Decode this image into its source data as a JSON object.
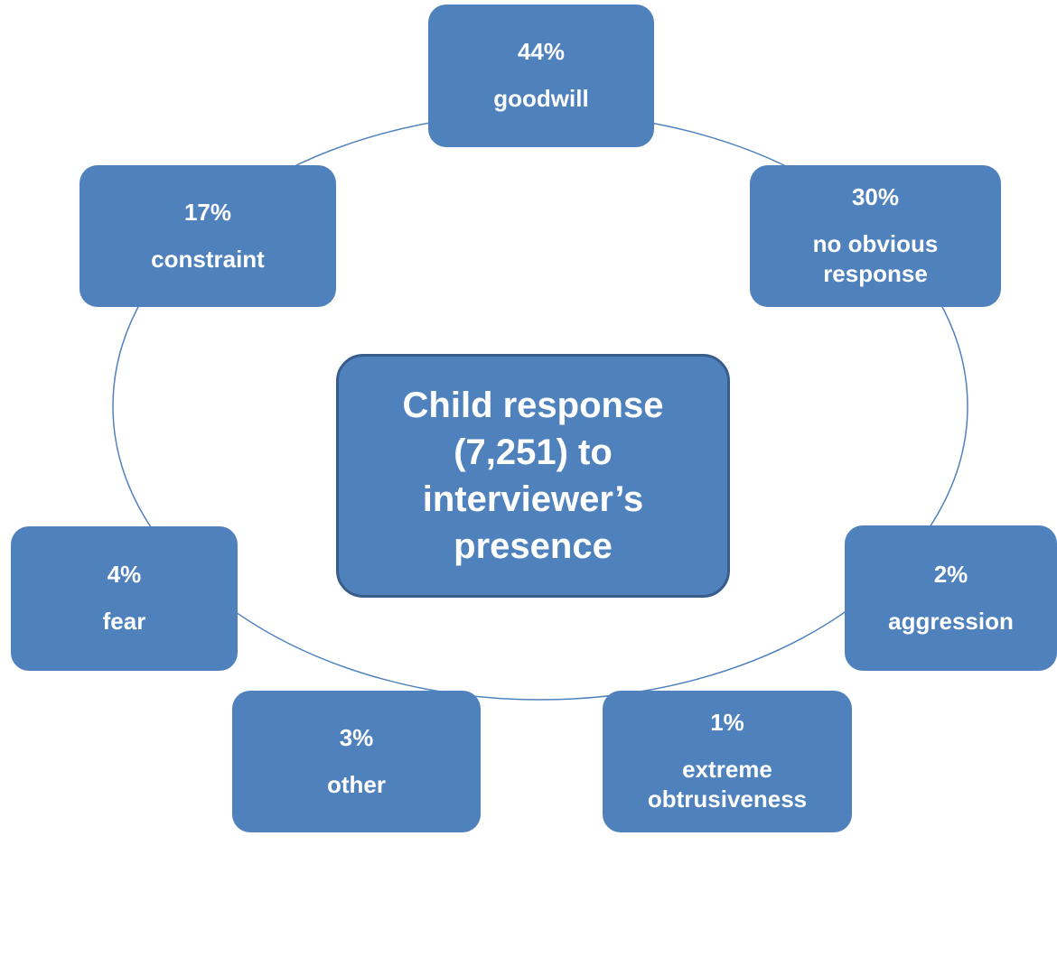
{
  "center": {
    "label": "Child response (7,251) to interviewer’s presence"
  },
  "nodes": [
    {
      "percent": "44%",
      "label": "goodwill"
    },
    {
      "percent": "30%",
      "label": "no obvious response"
    },
    {
      "percent": "2%",
      "label": "aggression"
    },
    {
      "percent": "1%",
      "label": "extreme obtrusiveness"
    },
    {
      "percent": "3%",
      "label": "other"
    },
    {
      "percent": "4%",
      "label": "fear"
    },
    {
      "percent": "17%",
      "label": "constraint"
    }
  ]
}
